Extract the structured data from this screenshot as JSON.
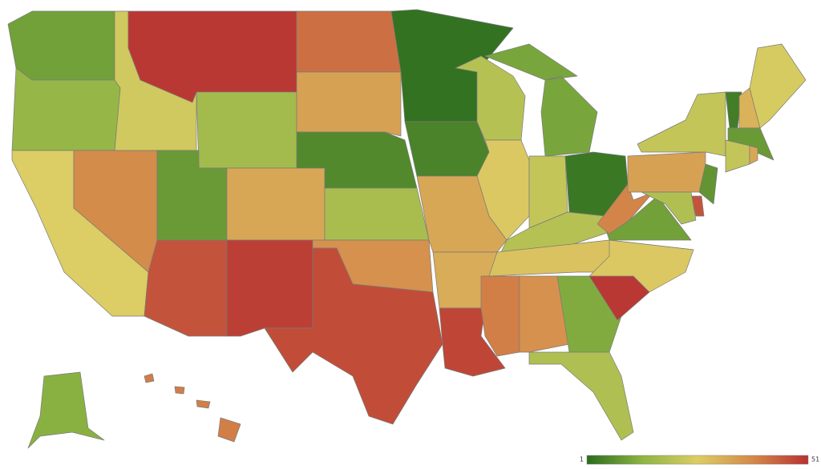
{
  "chart_data": {
    "type": "choropleth",
    "values": [
      10,
      15,
      26,
      38,
      24,
      50,
      17,
      9,
      33,
      46,
      49,
      42,
      34,
      6,
      18,
      37,
      47,
      2,
      5,
      33,
      32,
      48,
      20,
      27,
      11,
      22,
      3,
      20,
      28,
      40,
      37,
      12,
      19,
      50,
      27,
      10,
      39,
      34,
      22,
      4,
      31,
      25,
      9,
      22,
      33,
      8,
      46,
      19,
      13,
      40
    ],
    "scale_range": [
      1,
      51
    ],
    "colorscale": [
      "#2b6c1e",
      "#8db443",
      "#dccd64",
      "#d4894a",
      "#b83131"
    ]
  }
}
